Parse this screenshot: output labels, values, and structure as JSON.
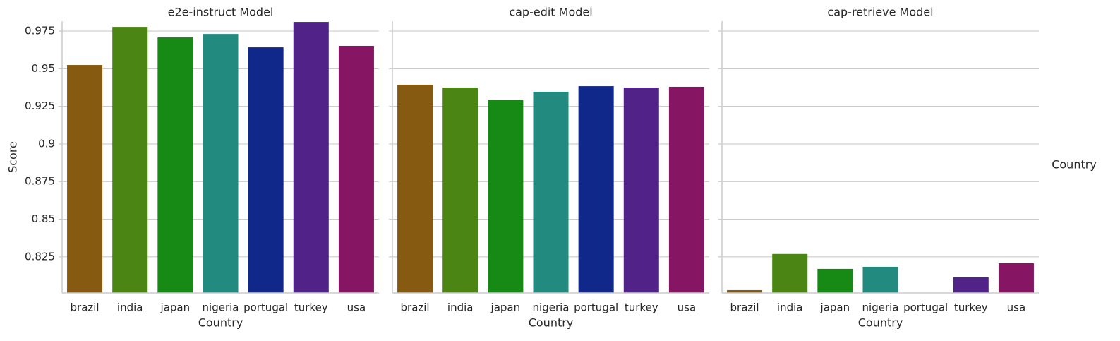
{
  "chart_data": [
    {
      "type": "bar",
      "title": "e2e-instruct Model",
      "xlabel": "Country",
      "ylabel": "Score",
      "categories": [
        "brazil",
        "india",
        "japan",
        "nigeria",
        "portugal",
        "turkey",
        "usa"
      ],
      "values": [
        0.9525,
        0.9778,
        0.9708,
        0.9731,
        0.9642,
        0.9811,
        0.9652
      ],
      "colors": [
        "#875a12",
        "#4b8614",
        "#168a14",
        "#238a80",
        "#10288a",
        "#512388",
        "#861563"
      ],
      "ylim": [
        0.801,
        0.9816
      ],
      "yticks": [
        0.825,
        0.85,
        0.875,
        0.9,
        0.925,
        0.95,
        0.975
      ],
      "grid": true
    },
    {
      "type": "bar",
      "title": "cap-edit Model",
      "xlabel": "Country",
      "categories": [
        "brazil",
        "india",
        "japan",
        "nigeria",
        "portugal",
        "turkey",
        "usa"
      ],
      "values": [
        0.9394,
        0.9375,
        0.9295,
        0.9347,
        0.9384,
        0.9375,
        0.938
      ],
      "colors": [
        "#875a12",
        "#4b8614",
        "#168a14",
        "#238a80",
        "#10288a",
        "#512388",
        "#861563"
      ],
      "ylim": [
        0.801,
        0.9816
      ],
      "yticks": [
        0.825,
        0.85,
        0.875,
        0.9,
        0.925,
        0.95,
        0.975
      ],
      "grid": true
    },
    {
      "type": "bar",
      "title": "cap-retrieve Model",
      "xlabel": "Country",
      "categories": [
        "brazil",
        "india",
        "japan",
        "nigeria",
        "portugal",
        "turkey",
        "usa"
      ],
      "values": [
        0.8029,
        0.8269,
        0.817,
        0.8184,
        null,
        0.8114,
        0.8208
      ],
      "colors": [
        "#875a12",
        "#4b8614",
        "#168a14",
        "#238a80",
        "#10288a",
        "#512388",
        "#861563"
      ],
      "ylim": [
        0.801,
        0.9816
      ],
      "yticks": [
        0.825,
        0.85,
        0.875,
        0.9,
        0.925,
        0.95,
        0.975
      ],
      "grid": true
    }
  ],
  "legend": {
    "title": "Country"
  }
}
